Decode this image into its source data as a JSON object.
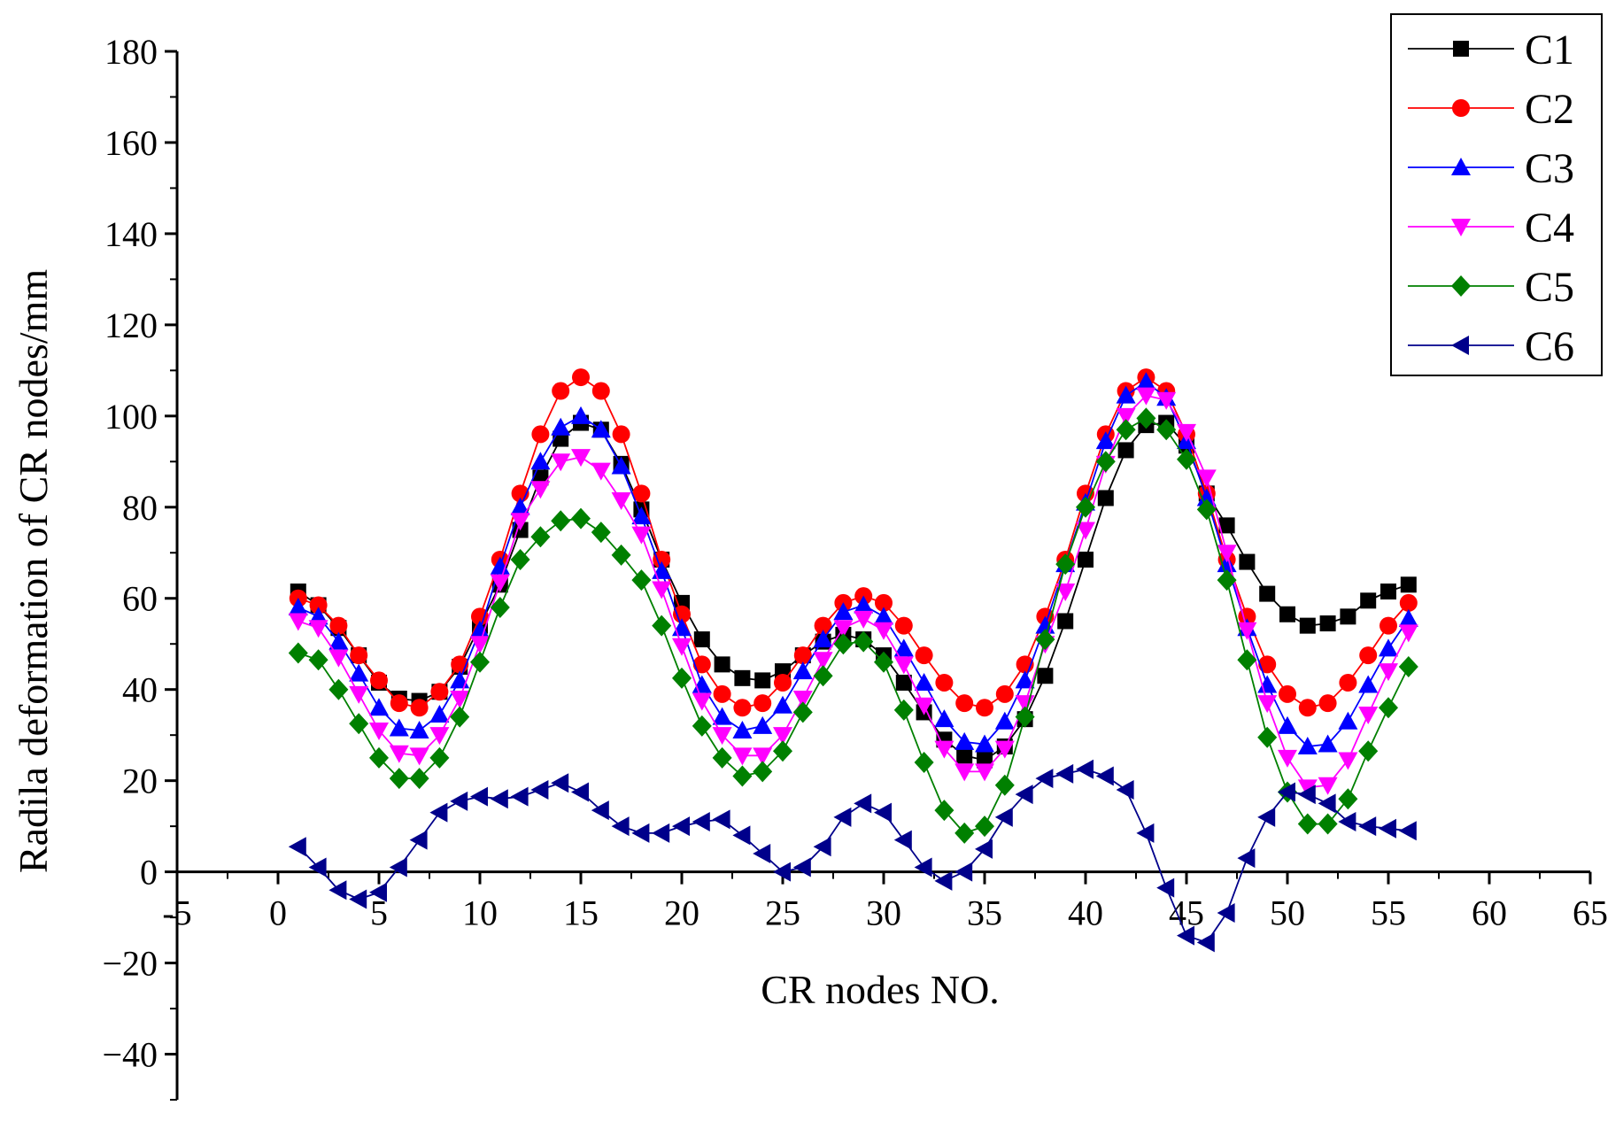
{
  "chart_data": {
    "type": "line",
    "title": "",
    "xlabel": "CR nodes NO.",
    "ylabel": "Radila deformation of CR nodes/mm",
    "xlim": [
      -5,
      65
    ],
    "ylim": [
      -50,
      180
    ],
    "xticks": [
      -5,
      0,
      5,
      10,
      15,
      20,
      25,
      30,
      35,
      40,
      45,
      50,
      55,
      60,
      65
    ],
    "yticks": [
      -40,
      -20,
      0,
      20,
      40,
      60,
      80,
      100,
      120,
      140,
      160,
      180
    ],
    "xtick_labels": [
      "-5",
      "0",
      "5",
      "10",
      "15",
      "20",
      "25",
      "30",
      "35",
      "40",
      "45",
      "50",
      "55",
      "60",
      "65"
    ],
    "ytick_labels": [
      "−40",
      "−20",
      "0",
      "20",
      "40",
      "60",
      "80",
      "100",
      "120",
      "140",
      "160",
      "180"
    ],
    "grid": false,
    "legend_position": "top-right",
    "series": [
      {
        "name": "C1",
        "color": "#000000",
        "marker": "square",
        "values": [
          61.5,
          58.5,
          53.5,
          47.5,
          41.5,
          38,
          37.5,
          39.5,
          45,
          54,
          63,
          75,
          86.5,
          95,
          98.5,
          97,
          89.5,
          79.5,
          68.5,
          59,
          51,
          45.5,
          42.5,
          42,
          44,
          47.5,
          50.5,
          52,
          51,
          47.5,
          41.5,
          35,
          29,
          25.5,
          24.5,
          27.5,
          33.5,
          43,
          55,
          68.5,
          82,
          92.5,
          98,
          98.5,
          93.5,
          83,
          76,
          68,
          61,
          56.5,
          54,
          54.5,
          56,
          59.5,
          61.5,
          63
        ]
      },
      {
        "name": "C2",
        "color": "#ff0000",
        "marker": "circle",
        "values": [
          60,
          58.5,
          54,
          47.5,
          42,
          37,
          36,
          39.5,
          45.5,
          56,
          68.5,
          83,
          96,
          105.5,
          108.5,
          105.5,
          96,
          83,
          68.5,
          56.5,
          45.5,
          39,
          36,
          37,
          41.5,
          47.5,
          54,
          59,
          60.5,
          59,
          54,
          47.5,
          41.5,
          37,
          36,
          39,
          45.5,
          56,
          68.5,
          83,
          96,
          105.5,
          108.5,
          105.5,
          96,
          83,
          68.5,
          56,
          45.5,
          39,
          36,
          37,
          41.5,
          47.5,
          54,
          59
        ]
      },
      {
        "name": "C3",
        "color": "#0000ff",
        "marker": "triangle-up",
        "values": [
          58,
          56,
          50.5,
          43.5,
          36,
          31.5,
          31,
          34.5,
          42,
          53,
          67,
          80,
          90,
          97.5,
          100,
          97,
          89,
          78,
          66,
          53.5,
          41,
          34,
          31,
          32,
          36.5,
          44,
          51,
          57,
          58.5,
          56,
          49,
          41.5,
          33.5,
          28.5,
          28,
          33,
          42,
          54,
          67.5,
          81,
          94.5,
          104.5,
          107.5,
          104,
          94.5,
          82,
          67.5,
          53.5,
          41,
          32,
          27.5,
          28,
          33,
          41,
          49,
          55.5
        ]
      },
      {
        "name": "C4",
        "color": "#ff00ff",
        "marker": "triangle-down",
        "values": [
          55,
          53.5,
          47,
          39,
          31,
          26,
          25.5,
          30,
          38,
          50,
          63.5,
          77,
          84,
          90,
          91,
          88,
          81.5,
          74,
          62,
          49.5,
          37.5,
          30,
          25.5,
          25.5,
          30,
          38,
          46.5,
          53.5,
          55.5,
          53,
          45.5,
          36.5,
          27,
          22,
          22,
          27,
          37,
          50,
          61.5,
          75,
          89.5,
          100,
          104.5,
          103.5,
          96.5,
          86.5,
          70,
          53,
          37,
          25,
          18.5,
          19,
          24.5,
          34.5,
          44,
          52.5
        ]
      },
      {
        "name": "C5",
        "color": "#008000",
        "marker": "diamond",
        "values": [
          48,
          46.5,
          40,
          32.5,
          25,
          20.5,
          20.5,
          25,
          34,
          46,
          58,
          68.5,
          73.5,
          77,
          77.5,
          74.5,
          69.5,
          64,
          54,
          42.5,
          32,
          25,
          21,
          22,
          26.5,
          35,
          43,
          50,
          50.5,
          46,
          35.5,
          24,
          13.5,
          8.5,
          10,
          19,
          34,
          51,
          67.5,
          80,
          90,
          97,
          99.5,
          97,
          90.5,
          79.5,
          64,
          46.5,
          29.5,
          17.5,
          10.5,
          10.5,
          16,
          26.5,
          36,
          45
        ]
      },
      {
        "name": "C6",
        "color": "#00008b",
        "marker": "triangle-left",
        "values": [
          5.5,
          1,
          -4,
          -6,
          -4.5,
          1,
          7,
          13,
          15.5,
          16.5,
          16,
          16.5,
          18,
          19.5,
          17.5,
          13.5,
          10,
          8.5,
          8.5,
          10,
          11,
          11.5,
          8,
          4,
          0,
          1,
          5.5,
          12,
          15,
          13,
          7,
          1,
          -2,
          0,
          5,
          12,
          17,
          20.5,
          21.5,
          22.5,
          21,
          18,
          8.5,
          -3.5,
          -14,
          -15.5,
          -9,
          3,
          12,
          17.5,
          17,
          15,
          11,
          10,
          9.5,
          9
        ]
      }
    ]
  }
}
